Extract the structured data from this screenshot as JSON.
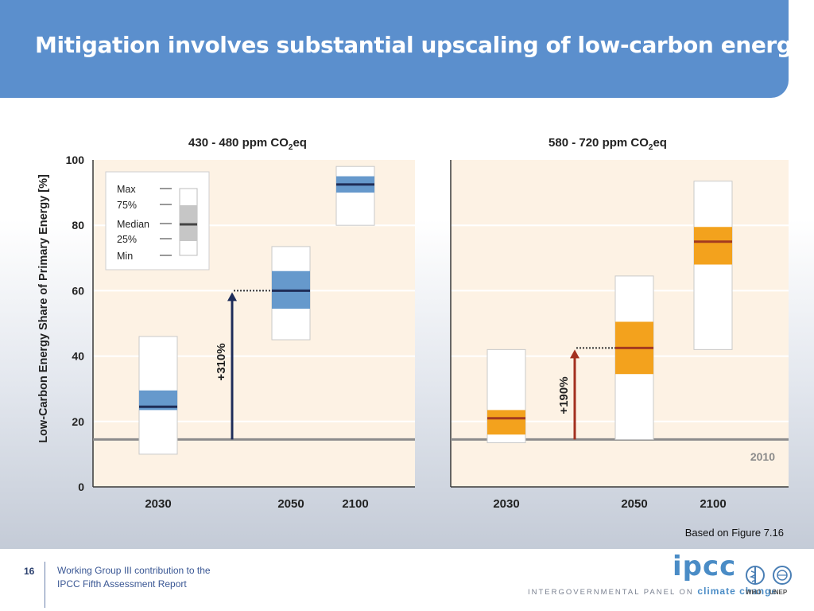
{
  "slide": {
    "title": "Mitigation involves substantial upscaling of low-carbon energy.",
    "caption": "Based on Figure 7.16",
    "page_number": "16",
    "footer_line1": "Working Group III contribution to the",
    "footer_line2": "IPCC Fifth Assessment Report",
    "logo_text": "ipcc",
    "logo_sub_prefix": "INTERGOVERNMENTAL PANEL ON",
    "logo_sub_accent": "climate change",
    "who_label": "WHO",
    "unep_label": "UNEP"
  },
  "colors": {
    "header": "#5b8fcd",
    "panel_bg": "#fdf2e4",
    "box_blue": "#6699cc",
    "median_blue": "#1f2d57",
    "box_orange": "#f3a21d",
    "median_orange": "#a33a20",
    "arrow_blue": "#1e2d5a",
    "arrow_red": "#a3301f",
    "baseline": "#8c8c8c"
  },
  "chart_data": {
    "type": "boxplot",
    "ylabel": "Low-Carbon Energy Share of Primary Energy [%]",
    "ylim": [
      0,
      100
    ],
    "yticks": [
      "0",
      "20",
      "40",
      "60",
      "80",
      "100"
    ],
    "baseline": {
      "label": "2010",
      "value": 14.5
    },
    "legend": {
      "placement": "top-left",
      "items": [
        "Max",
        "75%",
        "Median",
        "25%",
        "Min"
      ]
    },
    "panels": [
      {
        "title": "430 - 480 ppm CO",
        "title_sub": "2",
        "title_suffix": "eq",
        "categories": [
          "2030",
          "2050",
          "2100"
        ],
        "boxes": [
          {
            "year": "2030",
            "min": 10,
            "q1": 23.5,
            "median": 24.5,
            "q3": 29.5,
            "max": 46
          },
          {
            "year": "2050",
            "min": 45,
            "q1": 54.5,
            "median": 60,
            "q3": 66,
            "max": 73.5
          },
          {
            "year": "2100",
            "min": 80,
            "q1": 90,
            "median": 92.5,
            "q3": 95,
            "max": 98
          }
        ],
        "arrow": {
          "label": "+310%",
          "from": 14.5,
          "to": 60
        }
      },
      {
        "title": "580 - 720 ppm CO",
        "title_sub": "2",
        "title_suffix": "eq",
        "categories": [
          "2030",
          "2050",
          "2100"
        ],
        "boxes": [
          {
            "year": "2030",
            "min": 13.5,
            "q1": 16,
            "median": 21,
            "q3": 23.5,
            "max": 42
          },
          {
            "year": "2050",
            "min": 14.5,
            "q1": 34.5,
            "median": 42.5,
            "q3": 50.5,
            "max": 64.5
          },
          {
            "year": "2100",
            "min": 42,
            "q1": 68,
            "median": 75,
            "q3": 79.5,
            "max": 93.5
          }
        ],
        "arrow": {
          "label": "+190%",
          "from": 14.5,
          "to": 42.5
        }
      }
    ]
  }
}
